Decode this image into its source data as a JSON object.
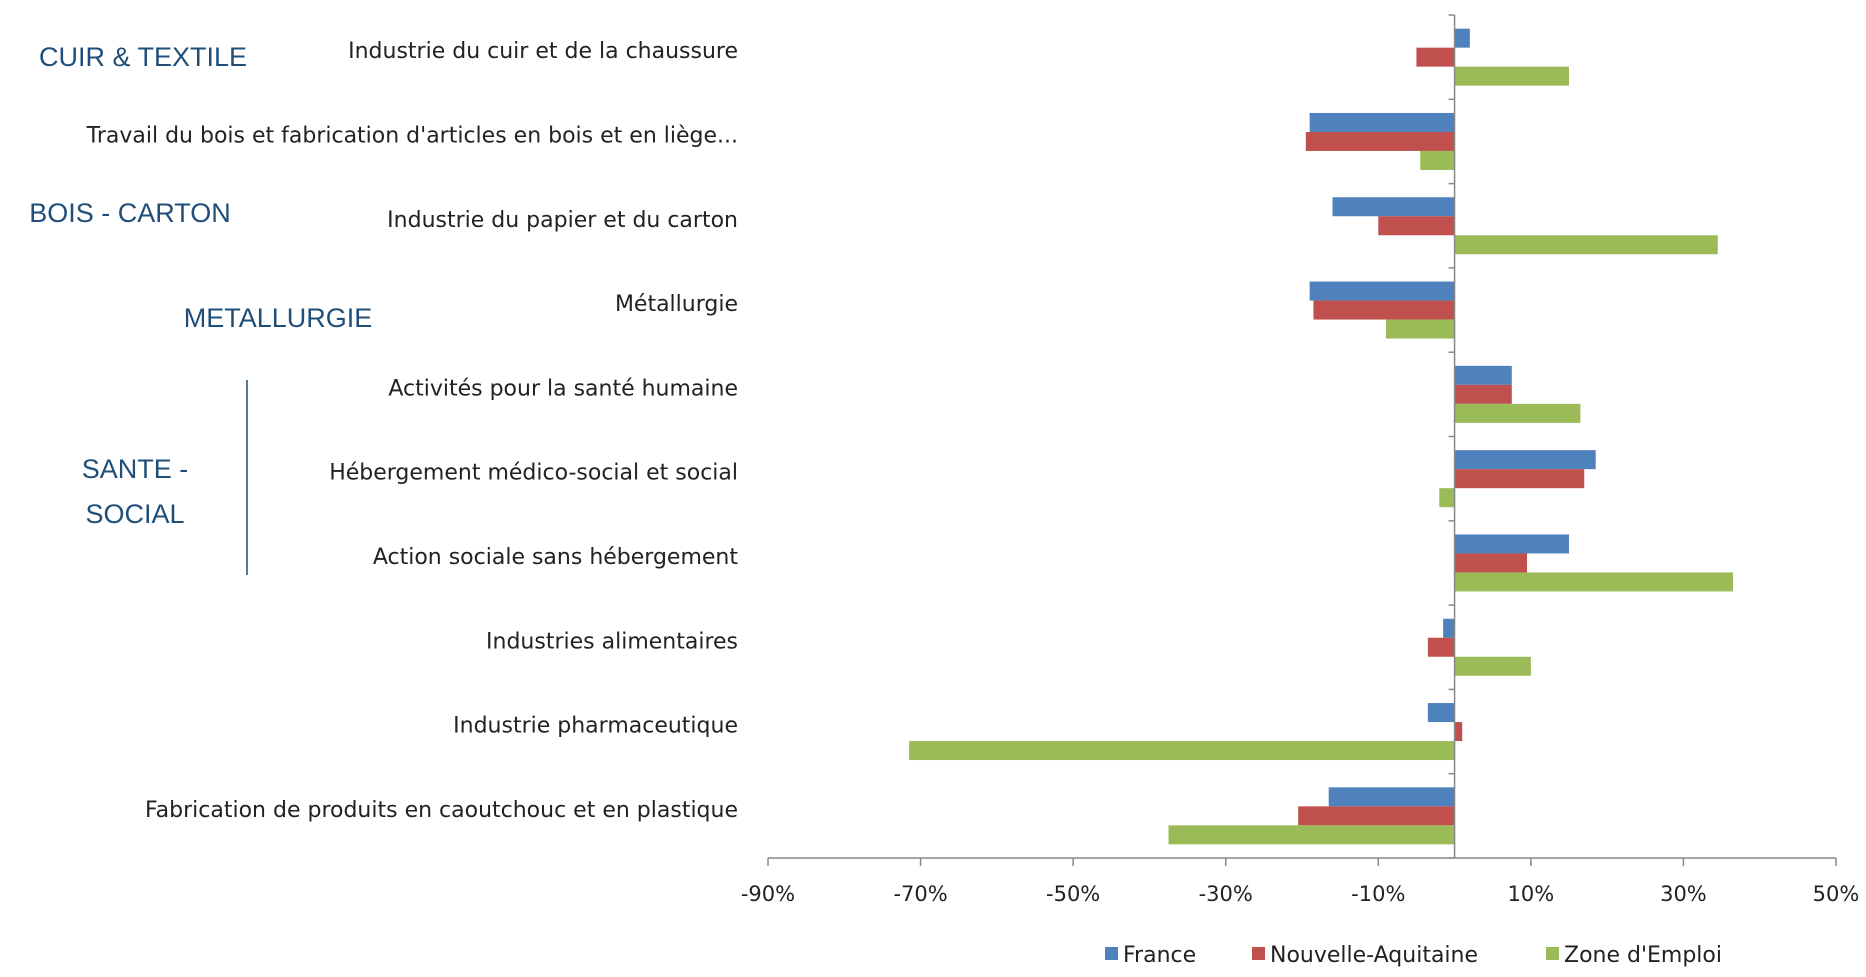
{
  "groups": [
    {
      "id": "cuir",
      "lines": [
        "CUIR & TEXTILE"
      ]
    },
    {
      "id": "bois",
      "lines": [
        "BOIS - CARTON"
      ]
    },
    {
      "id": "metal",
      "lines": [
        "METALLURGIE"
      ]
    },
    {
      "id": "sante",
      "lines": [
        "SANTE -",
        "SOCIAL"
      ]
    }
  ],
  "chart_data": {
    "type": "bar",
    "orientation": "horizontal",
    "categories": [
      "Industrie du cuir et de la chaussure",
      "Travail du bois et fabrication d'articles en bois et en liège...",
      "Industrie du papier et du carton",
      "Métallurgie",
      "Activités pour la santé humaine",
      "Hébergement médico-social et social",
      "Action sociale sans hébergement",
      "Industries alimentaires",
      "Industrie pharmaceutique",
      "Fabrication de produits en caoutchouc et en plastique"
    ],
    "series": [
      {
        "name": "France",
        "color": "#4f81bd",
        "values": [
          2,
          -19,
          -16,
          -19,
          7.5,
          18.5,
          15,
          -1.5,
          -3.5,
          -16.5
        ]
      },
      {
        "name": "Nouvelle-Aquitaine",
        "color": "#c0504d",
        "values": [
          -5,
          -19.5,
          -10,
          -18.5,
          7.5,
          17,
          9.5,
          -3.5,
          1,
          -20.5
        ]
      },
      {
        "name": "Zone d'Emploi",
        "color": "#9bbb59",
        "values": [
          15,
          -4.5,
          34.5,
          -9,
          16.5,
          -2,
          36.5,
          10,
          -71.5,
          -37.5
        ]
      }
    ],
    "xlim": [
      -90,
      50
    ],
    "xticks": [
      -90,
      -70,
      -50,
      -30,
      -10,
      10,
      30,
      50
    ],
    "xtick_labels": [
      "-90%",
      "-70%",
      "-50%",
      "-30%",
      "-10%",
      "10%",
      "30%",
      "50%"
    ],
    "unit": "%",
    "legend_position": "bottom",
    "grid": false
  }
}
